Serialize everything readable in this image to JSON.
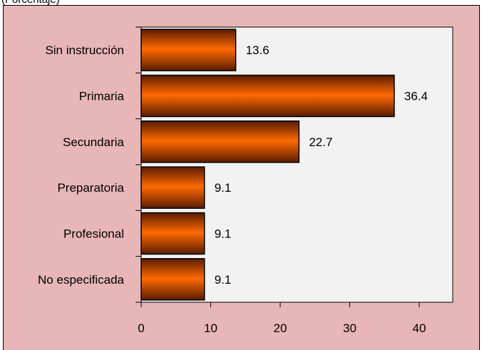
{
  "caption": "(Porcentaje)",
  "colors": {
    "background": "#e8b6b6",
    "plot_area": "#f2f2f2",
    "bar_light": "#ff6a00",
    "bar_dark": "#5a1c00"
  },
  "chart_data": {
    "type": "bar",
    "orientation": "horizontal",
    "categories": [
      "Sin instrucción",
      "Primaria",
      "Secundaria",
      "Preparatoria",
      "Profesional",
      "No especificada"
    ],
    "values": [
      13.6,
      36.4,
      22.7,
      9.1,
      9.1,
      9.1
    ],
    "value_labels": [
      "13.6",
      "36.4",
      "22.7",
      "9.1",
      "9.1",
      "9.1"
    ],
    "x_ticks": [
      0,
      10,
      20,
      30,
      40
    ],
    "xlim": [
      0,
      45
    ],
    "grid": false,
    "legend": false
  }
}
